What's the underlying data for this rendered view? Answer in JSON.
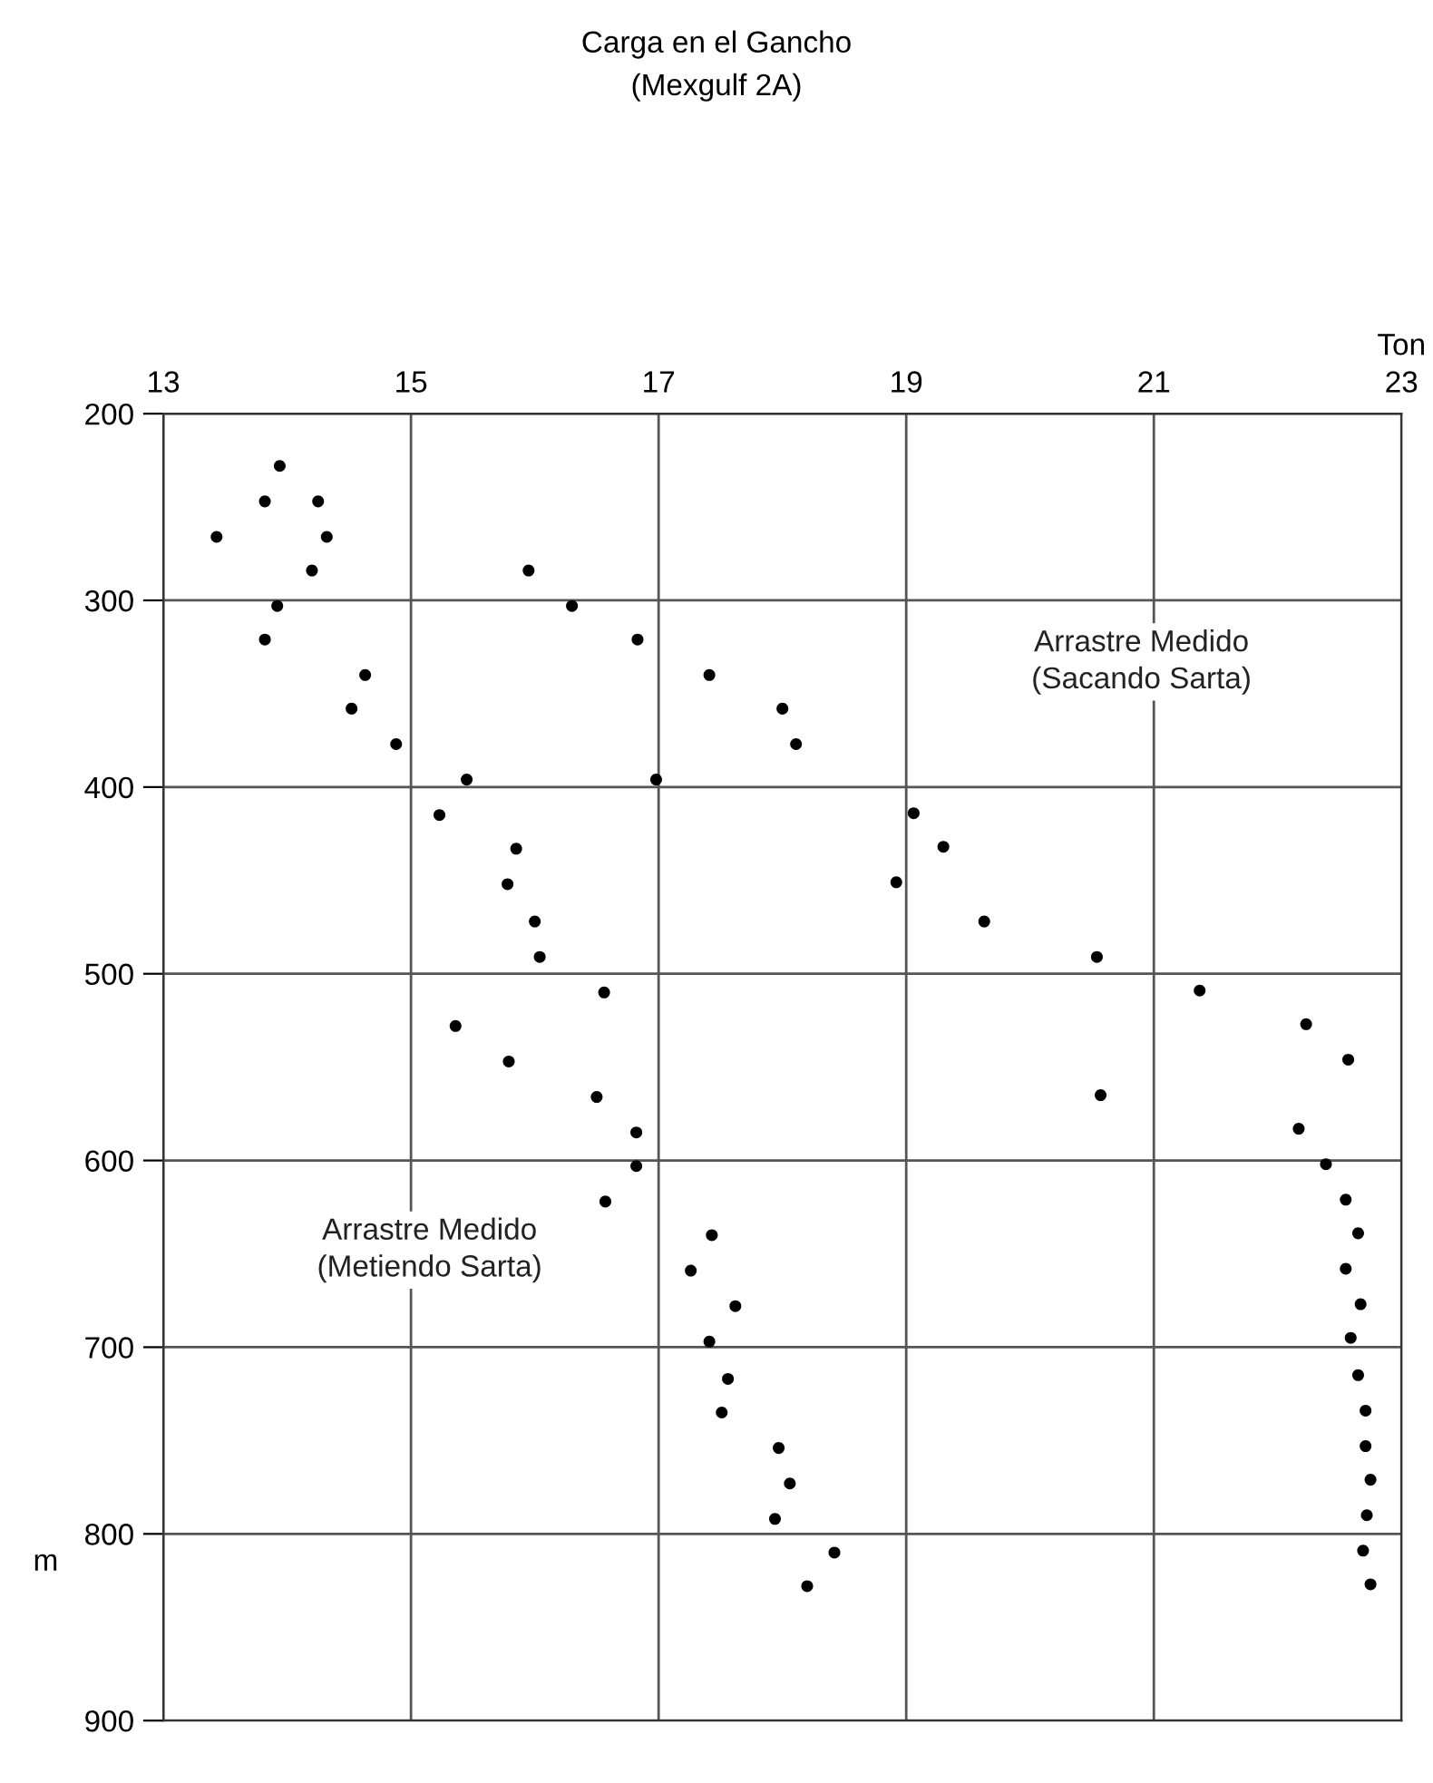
{
  "chart_data": {
    "type": "scatter",
    "title": "Carga en el Gancho",
    "subtitle": "(Mexgulf 2A)",
    "xlabel": "Ton",
    "ylabel": "m",
    "xlim": [
      13,
      23
    ],
    "xticks": [
      13,
      15,
      17,
      19,
      21,
      23
    ],
    "ylim": [
      900,
      200
    ],
    "yticks": [
      200,
      300,
      400,
      500,
      600,
      700,
      800,
      900
    ],
    "grid": true,
    "marker": "circle",
    "series": [
      {
        "color": "#000000",
        "x": [
          13.94,
          13.82,
          14.25,
          13.43,
          14.32,
          14.2,
          13.92,
          13.82,
          14.63,
          14.52,
          14.88,
          15.45,
          15.23,
          15.85,
          15.78,
          16.0,
          16.04,
          16.56,
          15.36,
          15.79,
          16.5,
          16.82,
          16.82,
          16.57,
          17.43,
          17.26,
          17.62,
          17.41,
          17.56,
          17.51,
          17.97,
          18.06,
          17.94,
          18.42,
          18.2
        ],
        "values": [
          228,
          247,
          247,
          266,
          266,
          284,
          303,
          321,
          340,
          358,
          377,
          396,
          415,
          433,
          452,
          472,
          491,
          510,
          528,
          547,
          566,
          585,
          603,
          622,
          640,
          659,
          678,
          697,
          717,
          735,
          754,
          773,
          792,
          810,
          828
        ]
      },
      {
        "color": "#000000",
        "x": [
          15.95,
          16.3,
          16.83,
          17.41,
          18.0,
          18.11,
          16.98,
          19.06,
          19.3,
          18.92,
          19.63,
          20.54,
          21.37,
          22.23,
          22.57,
          20.57,
          22.17,
          22.39,
          22.55,
          22.65,
          22.55,
          22.67,
          22.59,
          22.65,
          22.71,
          22.71,
          22.75,
          22.72,
          22.69,
          22.75
        ],
        "values": [
          284,
          303,
          321,
          340,
          358,
          377,
          396,
          414,
          432,
          451,
          472,
          491,
          509,
          527,
          546,
          565,
          583,
          602,
          621,
          639,
          658,
          677,
          695,
          715,
          734,
          753,
          771,
          790,
          809,
          827
        ]
      }
    ],
    "annotations": [
      "Arrastre Medido\n(Sacando Sarta)",
      "Arrastre Medido\n(Metiendo Sarta)"
    ]
  }
}
